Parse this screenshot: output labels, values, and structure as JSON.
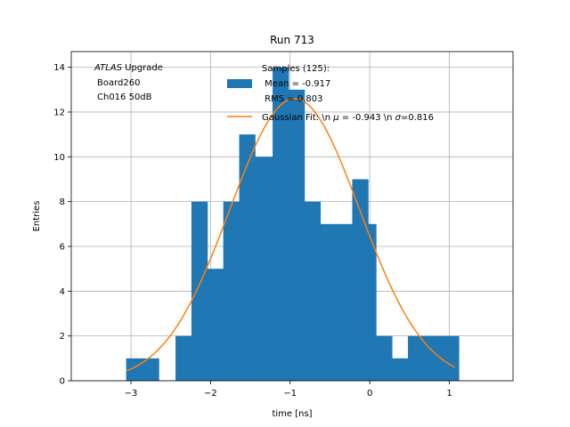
{
  "chart_data": {
    "type": "bar",
    "title": "Run 713",
    "xlabel": "time [ns]",
    "ylabel": "Entries",
    "xlim": [
      -3.75,
      1.8
    ],
    "ylim": [
      0,
      14.7
    ],
    "grid": true,
    "xticks": [
      -3,
      -2,
      -1,
      0,
      1
    ],
    "xtick_labels": [
      "−3",
      "−2",
      "−1",
      "0",
      "1"
    ],
    "yticks": [
      0,
      2,
      4,
      6,
      8,
      10,
      12,
      14
    ],
    "ytick_labels": [
      "0",
      "2",
      "4",
      "6",
      "8",
      "10",
      "12",
      "14"
    ],
    "histogram": {
      "bin_edges": [
        -3.06,
        -2.65,
        -2.44,
        -2.24,
        -2.04,
        -1.84,
        -1.64,
        -1.44,
        -1.22,
        -1.02,
        -0.82,
        -0.62,
        -0.42,
        -0.22,
        -0.02,
        0.08,
        0.28,
        0.48,
        0.68,
        0.88,
        1.12
      ],
      "counts": [
        1,
        0,
        2,
        8,
        5,
        8,
        11,
        10,
        14,
        13,
        8,
        7,
        7,
        9,
        7,
        2,
        1,
        2,
        2,
        2
      ],
      "color": "#1f77b4"
    },
    "fit_curve": {
      "type": "gaussian",
      "mu": -0.943,
      "sigma": 0.816,
      "amplitude": 12.6,
      "x_range": [
        -3.05,
        1.07
      ],
      "color": "#ff7f0e"
    },
    "annotation_lines": [
      "ATLAS",
      " Upgrade",
      "Board260",
      "Ch016 50dB"
    ],
    "legend": {
      "placement": "top",
      "entries": [
        {
          "label_lines": [
            "Samples (125):",
            " Mean = -0.917",
            " RMS = 0.803"
          ],
          "kind": "patch",
          "color": "#1f77b4"
        },
        {
          "label_prefix": "Gaussian Fit: \\n ",
          "mu_symbol": "μ",
          "mu_text": " = -0.943 \\n ",
          "sigma_symbol": "σ",
          "sigma_text": "=0.816",
          "kind": "line",
          "color": "#ff7f0e"
        }
      ]
    }
  }
}
